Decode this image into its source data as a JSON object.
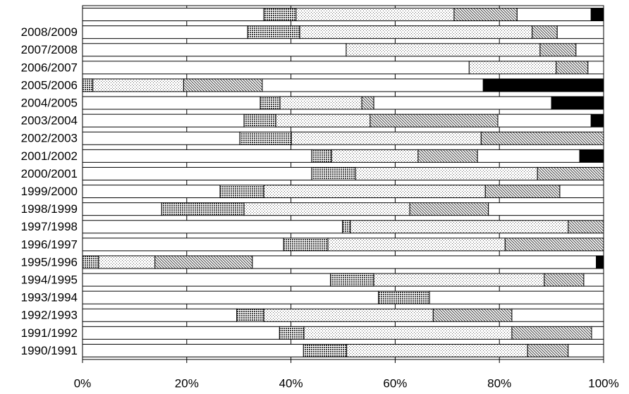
{
  "chart_data": {
    "type": "stacked-bar-horizontal",
    "categories": [
      null,
      "2008/2009",
      "2007/2008",
      "2006/2007",
      "2005/2006",
      "2004/2005",
      "2003/2004",
      "2002/2003",
      "2001/2002",
      "2000/2001",
      "1999/2000",
      "1998/1999",
      "1997/1998",
      "1996/1997",
      "1995/1996",
      "1994/1995",
      "1993/1994",
      "1992/1993",
      "1991/1992",
      "1990/1991"
    ],
    "series": [
      {
        "color": "#ffffff",
        "pattern": "none",
        "values": [
          34.8,
          31.7,
          50.6,
          74.2,
          0,
          34.1,
          31.0,
          30.2,
          44.0,
          44.0,
          26.4,
          15.2,
          49.9,
          38.6,
          0,
          47.6,
          56.8,
          29.6,
          37.8,
          42.4
        ]
      },
      {
        "color": "#404040",
        "pattern": "crosshatch",
        "values": [
          6.2,
          10.0,
          0,
          0,
          2.0,
          3.8,
          6.1,
          9.9,
          3.8,
          8.4,
          8.4,
          15.8,
          1.5,
          8.5,
          3.1,
          8.3,
          9.8,
          5.2,
          4.7,
          8.3
        ]
      },
      {
        "color": "#606060",
        "pattern": "dots",
        "values": [
          30.3,
          44.6,
          37.2,
          16.7,
          17.4,
          15.7,
          18.1,
          36.4,
          16.6,
          34.9,
          42.5,
          31.8,
          41.8,
          34.0,
          10.8,
          32.7,
          0,
          32.5,
          39.9,
          34.7
        ]
      },
      {
        "color": "#404040",
        "pattern": "diagonal",
        "values": [
          12.1,
          4.8,
          6.9,
          6.1,
          15.1,
          2.3,
          24.5,
          23.5,
          11.4,
          12.7,
          14.3,
          15.1,
          6.8,
          18.9,
          18.7,
          7.6,
          0,
          15.1,
          15.3,
          7.8
        ]
      },
      {
        "color": "#ffffff",
        "pattern": "none",
        "values": [
          14.2,
          8.9,
          5.3,
          3.0,
          42.4,
          34.1,
          17.9,
          0,
          19.6,
          0,
          8.4,
          22.1,
          0,
          0,
          66.0,
          3.8,
          33.4,
          17.6,
          2.3,
          6.8
        ]
      },
      {
        "color": "#000000",
        "pattern": "solid",
        "values": [
          2.4,
          0,
          0,
          0,
          23.1,
          10.0,
          2.4,
          0,
          4.6,
          0,
          0,
          0,
          0,
          0,
          1.4,
          0,
          0,
          0,
          0,
          0
        ]
      }
    ],
    "xlim": [
      0,
      100
    ],
    "xticks": [
      {
        "value": 0,
        "label": "0%"
      },
      {
        "value": 20,
        "label": "20%"
      },
      {
        "value": 40,
        "label": "40%"
      },
      {
        "value": 60,
        "label": "60%"
      },
      {
        "value": 80,
        "label": "80%"
      },
      {
        "value": 100,
        "label": "100%"
      }
    ],
    "grid": true
  }
}
